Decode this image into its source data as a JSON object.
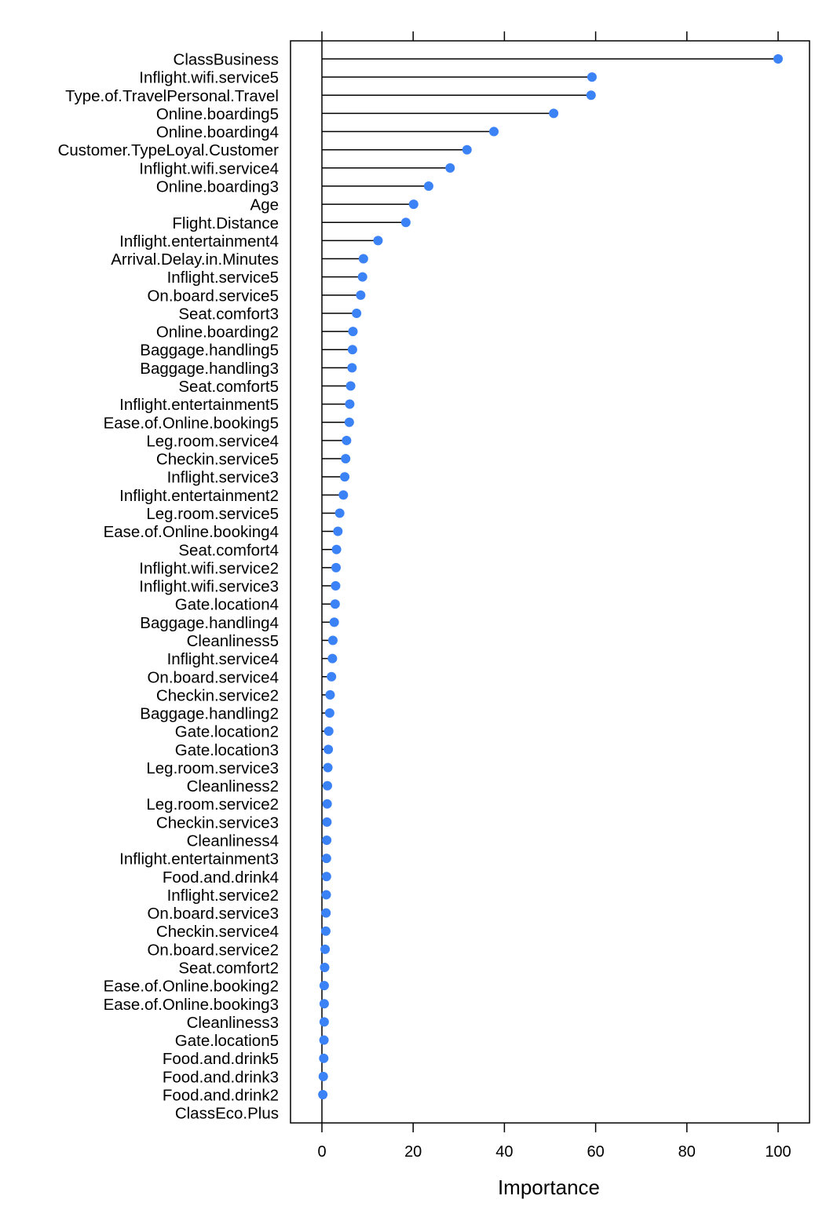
{
  "chart_data": {
    "type": "dot",
    "xlabel": "Importance",
    "xlim": [
      -7,
      107
    ],
    "xticks": [
      0,
      20,
      40,
      60,
      80,
      100
    ],
    "ticks_on_top": true,
    "grid": false,
    "legend": "none",
    "point_color": "#3b82f6",
    "line_color": "#000000",
    "categories": [
      "ClassBusiness",
      "Inflight.wifi.service5",
      "Type.of.TravelPersonal.Travel",
      "Online.boarding5",
      "Online.boarding4",
      "Customer.TypeLoyal.Customer",
      "Inflight.wifi.service4",
      "Online.boarding3",
      "Age",
      "Flight.Distance",
      "Inflight.entertainment4",
      "Arrival.Delay.in.Minutes",
      "Inflight.service5",
      "On.board.service5",
      "Seat.comfort3",
      "Online.boarding2",
      "Baggage.handling5",
      "Baggage.handling3",
      "Seat.comfort5",
      "Inflight.entertainment5",
      "Ease.of.Online.booking5",
      "Leg.room.service4",
      "Checkin.service5",
      "Inflight.service3",
      "Inflight.entertainment2",
      "Leg.room.service5",
      "Ease.of.Online.booking4",
      "Seat.comfort4",
      "Inflight.wifi.service2",
      "Inflight.wifi.service3",
      "Gate.location4",
      "Baggage.handling4",
      "Cleanliness5",
      "Inflight.service4",
      "On.board.service4",
      "Checkin.service2",
      "Baggage.handling2",
      "Gate.location2",
      "Gate.location3",
      "Leg.room.service3",
      "Cleanliness2",
      "Leg.room.service2",
      "Checkin.service3",
      "Cleanliness4",
      "Inflight.entertainment3",
      "Food.and.drink4",
      "Inflight.service2",
      "On.board.service3",
      "Checkin.service4",
      "On.board.service2",
      "Seat.comfort2",
      "Ease.of.Online.booking2",
      "Ease.of.Online.booking3",
      "Cleanliness3",
      "Gate.location5",
      "Food.and.drink5",
      "Food.and.drink3",
      "Food.and.drink2",
      "ClassEco.Plus"
    ],
    "values": [
      100,
      59.2,
      59.0,
      50.8,
      37.7,
      31.8,
      28.1,
      23.4,
      20.1,
      18.4,
      12.3,
      9.1,
      8.9,
      8.5,
      7.6,
      6.8,
      6.7,
      6.6,
      6.3,
      6.1,
      6.0,
      5.4,
      5.2,
      5.0,
      4.7,
      3.9,
      3.5,
      3.2,
      3.1,
      3.0,
      2.9,
      2.7,
      2.4,
      2.3,
      2.1,
      1.8,
      1.7,
      1.5,
      1.4,
      1.3,
      1.2,
      1.15,
      1.1,
      1.05,
      1.0,
      1.0,
      0.95,
      0.9,
      0.85,
      0.7,
      0.6,
      0.5,
      0.5,
      0.5,
      0.45,
      0.4,
      0.3,
      0.2,
      null
    ]
  }
}
